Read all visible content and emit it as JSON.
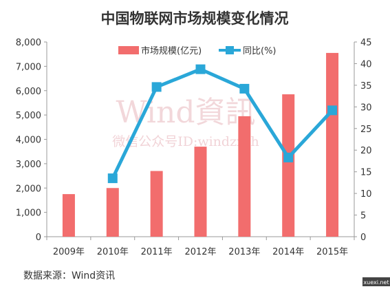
{
  "chart_data": {
    "type": "bar",
    "title": "中国物联网市场规模变化情况",
    "categories": [
      "2009年",
      "2010年",
      "2011年",
      "2012年",
      "2013年",
      "2014年",
      "2015年"
    ],
    "series": [
      {
        "name": "市场规模(亿元)",
        "type": "bar",
        "axis": "left",
        "values": [
          1750,
          2000,
          2700,
          3700,
          4950,
          5850,
          7550
        ]
      },
      {
        "name": "同比(%)",
        "type": "line",
        "axis": "right",
        "values": [
          null,
          13.5,
          34.6,
          38.7,
          34.2,
          18.3,
          29.2
        ]
      }
    ],
    "ylim_left": [
      0,
      8000
    ],
    "ylim_right": [
      0,
      45
    ],
    "yticks_left": [
      "0",
      "1,000",
      "2,000",
      "3,000",
      "4,000",
      "5,000",
      "6,000",
      "7,000",
      "8,000"
    ],
    "yticks_right": [
      "0",
      "5",
      "10",
      "15",
      "20",
      "25",
      "30",
      "35",
      "40",
      "45"
    ],
    "legend_position": "top",
    "grid": false,
    "colors": {
      "bar": "#f26d6d",
      "line": "#2aa7d8"
    }
  },
  "watermark": {
    "main": "Wind資訊",
    "sub": "微信公众号ID:windzxsh"
  },
  "source": "数据来源：Wind资讯",
  "corner_mark": "xuexi.net"
}
